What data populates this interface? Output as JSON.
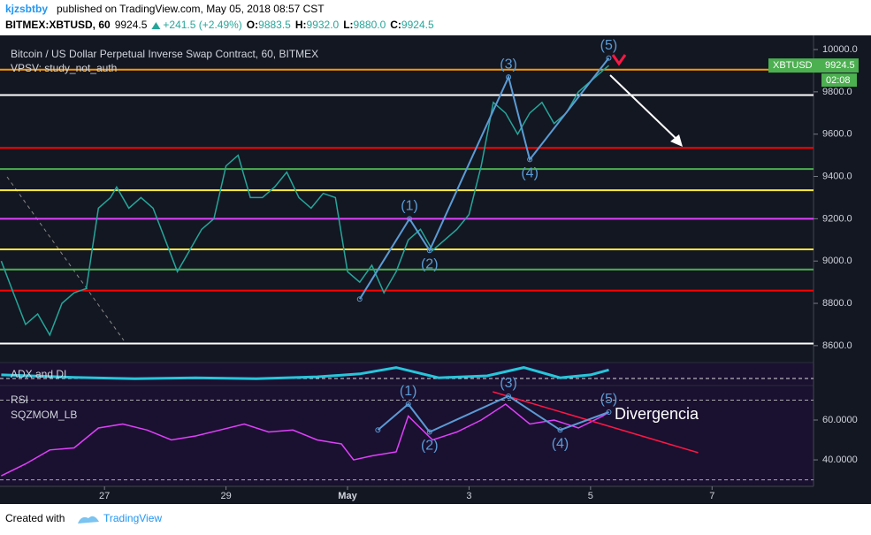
{
  "header": {
    "user": "kjzsbtby",
    "published": "published on TradingView.com, May 05, 2018 08:57 CST"
  },
  "symbol": {
    "name": "BITMEX:XBTUSD, 60",
    "last": "9924.5",
    "change": "+241.5 (+2.49%)",
    "ohlc": [
      {
        "key": "O:",
        "value": "9883.5"
      },
      {
        "key": "H:",
        "value": "9932.0"
      },
      {
        "key": "L:",
        "value": "9880.0"
      },
      {
        "key": "C:",
        "value": "9924.5"
      }
    ]
  },
  "footer": {
    "created": "Created with",
    "brand": "TradingView"
  },
  "chart_data": [
    {
      "type": "line",
      "title": "Bitcoin / US Dollar Perpetual Inverse Swap Contract, 60, BITMEX",
      "subtitle": "VPSV: study_not_auth",
      "x": [
        -1.7,
        -1.5,
        -1.3,
        -1.1,
        -0.9,
        -0.7,
        -0.5,
        -0.3,
        -0.1,
        0.1,
        0.2,
        0.4,
        0.6,
        0.8,
        1.0,
        1.2,
        1.4,
        1.6,
        1.8,
        2.0,
        2.2,
        2.4,
        2.6,
        2.8,
        3.0,
        3.2,
        3.4,
        3.6,
        3.8,
        4.0,
        4.2,
        4.4,
        4.6,
        4.8,
        5.0,
        5.2,
        5.4,
        5.6,
        5.8,
        6.0,
        6.2,
        6.4,
        6.6,
        6.8,
        7.0,
        7.2,
        7.4,
        7.6,
        7.8,
        8.0,
        8.2,
        8.3
      ],
      "series": [
        {
          "name": "XBTUSD",
          "color": "#26a69a",
          "values": [
            9000,
            8850,
            8700,
            8750,
            8650,
            8800,
            8850,
            8870,
            9250,
            9300,
            9350,
            9250,
            9300,
            9250,
            9100,
            8950,
            9050,
            9150,
            9200,
            9450,
            9500,
            9300,
            9300,
            9350,
            9420,
            9300,
            9250,
            9320,
            9300,
            8950,
            8900,
            8980,
            8850,
            8950,
            9100,
            9150,
            9050,
            9100,
            9150,
            9220,
            9450,
            9750,
            9700,
            9600,
            9700,
            9750,
            9650,
            9700,
            9800,
            9850,
            9900,
            9924.5
          ]
        }
      ],
      "price_tag": {
        "value": 9924.5,
        "label": "9924.5",
        "timer": "02:08",
        "color": "#4caf50"
      },
      "levels": [
        {
          "value": 9905,
          "color": "#ff9800"
        },
        {
          "value": 9785,
          "color": "#ffffff"
        },
        {
          "value": 9535,
          "color": "#ff0000"
        },
        {
          "value": 9435,
          "color": "#4caf50"
        },
        {
          "value": 9335,
          "color": "#ffeb3b"
        },
        {
          "value": 9200,
          "color": "#e040fb"
        },
        {
          "value": 9055,
          "color": "#ffeb3b"
        },
        {
          "value": 8960,
          "color": "#4caf50"
        },
        {
          "value": 8860,
          "color": "#ff0000"
        },
        {
          "value": 8610,
          "color": "#ffffff"
        }
      ],
      "waves": {
        "color": "#5b9bd5",
        "x": [
          4.2,
          5.02,
          5.35,
          6.65,
          7.0,
          8.3
        ],
        "values": [
          8820,
          9200,
          9050,
          9870,
          9480,
          9960
        ],
        "labels": [
          null,
          "(1)",
          "(2)",
          "(3)",
          "(4)",
          "(5)"
        ]
      },
      "xlim": [
        -1.72,
        11.67
      ],
      "ylim": [
        8520,
        10067
      ],
      "yticks": [
        {
          "value": 8600,
          "label": "8600.0"
        },
        {
          "value": 8800,
          "label": "8800.0"
        },
        {
          "value": 9000,
          "label": "9000.0"
        },
        {
          "value": 9200,
          "label": "9200.0"
        },
        {
          "value": 9400,
          "label": "9400.0"
        },
        {
          "value": 9600,
          "label": "9600.0"
        },
        {
          "value": 9800,
          "label": "9800.0"
        },
        {
          "value": 10000,
          "label": "10000.0"
        }
      ],
      "grid": false
    },
    {
      "type": "line",
      "title": "ADX and DI",
      "x": [
        -1.7,
        -0.5,
        0.5,
        1.5,
        2.5,
        3.5,
        4.2,
        4.8,
        5.5,
        6.3,
        6.9,
        7.5,
        8.0,
        8.3
      ],
      "values": [
        30,
        25,
        22,
        24,
        22,
        26,
        32,
        45,
        24,
        28,
        45,
        24,
        30,
        40
      ],
      "color": "#26c6da",
      "xlim": [
        -1.72,
        11.67
      ],
      "ylim": [
        10,
        55
      ]
    },
    {
      "type": "line",
      "title": "RSI",
      "subtitle": "SQZMOM_LB",
      "annotation": "Divergencia",
      "x": [
        -1.7,
        -1.3,
        -0.9,
        -0.5,
        -0.1,
        0.3,
        0.7,
        1.1,
        1.5,
        1.9,
        2.3,
        2.7,
        3.1,
        3.5,
        3.9,
        4.1,
        4.4,
        4.8,
        5.0,
        5.4,
        5.8,
        6.2,
        6.6,
        7.0,
        7.4,
        7.8,
        8.2,
        8.3
      ],
      "series": [
        {
          "name": "RSI",
          "color": "#e040fb",
          "values": [
            32,
            38,
            45,
            46,
            56,
            58,
            55,
            50,
            52,
            55,
            58,
            54,
            55,
            50,
            48,
            40,
            42,
            44,
            62,
            50,
            54,
            60,
            68,
            58,
            60,
            56,
            62,
            64
          ]
        }
      ],
      "bands": [
        30,
        70
      ],
      "waves": {
        "color": "#5b9bd5",
        "x": [
          4.5,
          5.0,
          5.35,
          6.65,
          7.5,
          8.3
        ],
        "values": [
          55,
          68,
          54,
          72,
          55,
          64
        ],
        "labels": [
          null,
          "(1)",
          "(2)",
          "(3)",
          "(4)",
          "(5)"
        ]
      },
      "divergence": {
        "color": "#ff1744",
        "x": [
          6.39,
          9.77
        ],
        "values": [
          74.2,
          43.6
        ]
      },
      "xlim": [
        -1.72,
        11.67
      ],
      "ylim": [
        27.6,
        77.3
      ],
      "yticks": [
        {
          "value": 40,
          "label": "40.0000"
        },
        {
          "value": 60,
          "label": "60.0000"
        }
      ],
      "xticks": [
        {
          "value": 0,
          "label": "27"
        },
        {
          "value": 2,
          "label": "29"
        },
        {
          "value": 4,
          "label": "May"
        },
        {
          "value": 6,
          "label": "3"
        },
        {
          "value": 8,
          "label": "5"
        },
        {
          "value": 10,
          "label": "7"
        }
      ]
    }
  ]
}
